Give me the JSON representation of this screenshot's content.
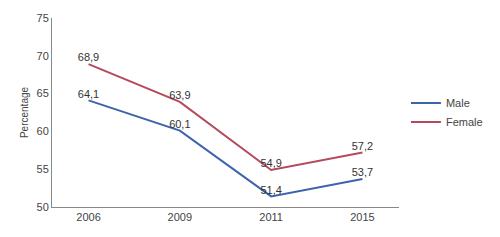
{
  "chart_data": {
    "type": "line",
    "y_label": "Percentage",
    "categories": [
      "2006",
      "2009",
      "2011",
      "2015"
    ],
    "series": [
      {
        "name": "Male",
        "color": "#3d63ad",
        "values": [
          64.1,
          60.1,
          51.4,
          53.7
        ],
        "value_labels": [
          "64,1",
          "60,1",
          "51,4",
          "53,7"
        ]
      },
      {
        "name": "Female",
        "color": "#b54a5e",
        "values": [
          68.9,
          63.9,
          54.9,
          57.2
        ],
        "value_labels": [
          "68,9",
          "63,9",
          "54,9",
          "57,2"
        ]
      }
    ],
    "ylim": [
      50,
      75
    ],
    "yticks": [
      50,
      55,
      60,
      65,
      70,
      75
    ],
    "grid": false,
    "legend": "right",
    "data_labels": true
  }
}
